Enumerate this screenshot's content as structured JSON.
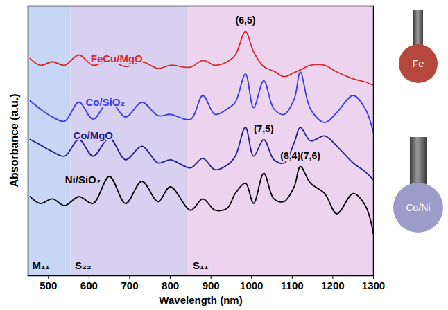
{
  "chart_data": {
    "type": "line",
    "x_label": "Wavelength (nm)",
    "y_label": "Absorbance (a.u.)",
    "xlim": [
      450,
      1300
    ],
    "xticks": [
      500,
      600,
      700,
      800,
      900,
      1000,
      1100,
      1200,
      1300
    ],
    "ylim": [
      0,
      10
    ],
    "yticks": [],
    "tick_labels": "x",
    "grid": false,
    "x": [
      455,
      480,
      510,
      540,
      575,
      610,
      650,
      690,
      730,
      770,
      800,
      850,
      880,
      910,
      940,
      960,
      985,
      1005,
      1030,
      1055,
      1080,
      1105,
      1120,
      1145,
      1180,
      1210,
      1250,
      1280,
      1300
    ],
    "series": [
      {
        "name": "FeCu/MgO",
        "color": "#d62a2a",
        "values": [
          8.05,
          7.8,
          7.93,
          7.8,
          8.18,
          7.8,
          7.98,
          7.75,
          7.93,
          7.68,
          7.8,
          7.73,
          7.98,
          7.8,
          7.93,
          8.18,
          9.05,
          8.3,
          7.75,
          7.58,
          7.38,
          7.53,
          7.63,
          7.8,
          7.8,
          7.55,
          7.3,
          7.18,
          7.05
        ]
      },
      {
        "name": "Co/SiO₂",
        "color": "#3a3ae8",
        "values": [
          6.48,
          6.18,
          5.88,
          5.73,
          6.43,
          5.8,
          6.48,
          5.88,
          6.43,
          5.93,
          5.98,
          5.8,
          6.68,
          5.98,
          6.18,
          6.43,
          7.48,
          6.23,
          7.23,
          6.18,
          5.98,
          6.55,
          7.55,
          6.18,
          5.68,
          6.05,
          6.68,
          6.18,
          5.3
        ]
      },
      {
        "name": "Co/MgO",
        "color": "#1f1f8f",
        "values": [
          5.05,
          4.85,
          4.6,
          4.43,
          5.05,
          4.43,
          5.1,
          4.3,
          4.8,
          4.18,
          4.3,
          4.0,
          4.35,
          3.93,
          4.1,
          4.43,
          5.5,
          4.43,
          5.05,
          4.3,
          4.18,
          4.93,
          5.5,
          5.0,
          5.18,
          4.8,
          4.18,
          3.85,
          3.55
        ]
      },
      {
        "name": "Ni/SiO₂",
        "color": "#000000",
        "values": [
          2.93,
          2.68,
          2.85,
          2.6,
          2.93,
          2.68,
          3.68,
          2.68,
          3.5,
          2.75,
          3.3,
          2.43,
          2.85,
          2.43,
          2.5,
          3.05,
          3.43,
          2.68,
          3.8,
          2.85,
          2.75,
          3.3,
          4.05,
          3.43,
          3.05,
          2.3,
          3.05,
          2.6,
          1.55
        ]
      }
    ],
    "regions": [
      {
        "label": "M₁₁",
        "start": 450,
        "end": 555,
        "color": "#c6d6f4"
      },
      {
        "label": "S₂₂",
        "start": 555,
        "end": 845,
        "color": "#d8d0f0"
      },
      {
        "label": "S₁₁",
        "start": 845,
        "end": 1300,
        "color": "#ecd4ef"
      }
    ],
    "annotations": [
      {
        "text": "(6,5)",
        "x": 985,
        "y": 9.45
      },
      {
        "text": "(7,5)",
        "x": 1030,
        "y": 5.43
      },
      {
        "text": "(8,4)(7,6)",
        "x": 1120,
        "y": 4.43
      }
    ],
    "catalyst_labels": [
      "Fe",
      "Co/Ni"
    ]
  }
}
